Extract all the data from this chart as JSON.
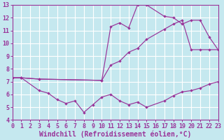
{
  "background_color": "#c5e8ef",
  "grid_color": "#ffffff",
  "line_color": "#993399",
  "xlabel": "Windchill (Refroidissement éolien,°C)",
  "xlabel_fontsize": 7,
  "xlim": [
    0,
    23
  ],
  "ylim": [
    4,
    13
  ],
  "xticks": [
    0,
    1,
    2,
    3,
    4,
    5,
    6,
    7,
    8,
    9,
    10,
    11,
    12,
    13,
    14,
    15,
    16,
    17,
    18,
    19,
    20,
    21,
    22,
    23
  ],
  "yticks": [
    4,
    5,
    6,
    7,
    8,
    9,
    10,
    11,
    12,
    13
  ],
  "tick_fontsize": 6,
  "line1_x": [
    0,
    1,
    3,
    10,
    11,
    12,
    13,
    14,
    15,
    17,
    18,
    19,
    20,
    21,
    22,
    23
  ],
  "line1_y": [
    7.3,
    7.3,
    7.2,
    7.1,
    11.3,
    11.6,
    11.2,
    13.0,
    13.0,
    12.1,
    12.0,
    11.5,
    11.8,
    11.8,
    10.5,
    9.5
  ],
  "line2_x": [
    0,
    1,
    3,
    10,
    11,
    12,
    13,
    14,
    15,
    17,
    18,
    19,
    20,
    21,
    22,
    23
  ],
  "line2_y": [
    7.3,
    7.3,
    7.2,
    7.1,
    8.3,
    8.6,
    9.3,
    9.6,
    10.3,
    11.1,
    11.5,
    11.8,
    9.5,
    9.5,
    9.5,
    9.5
  ],
  "line3_x": [
    0,
    1,
    3,
    4,
    5,
    6,
    7,
    8,
    9,
    10,
    11,
    12,
    13,
    14,
    15,
    17,
    18,
    19,
    20,
    21,
    22,
    23
  ],
  "line3_y": [
    7.3,
    7.3,
    6.3,
    6.1,
    5.6,
    5.3,
    5.5,
    4.6,
    5.2,
    5.8,
    6.0,
    5.5,
    5.2,
    5.4,
    5.0,
    5.5,
    5.9,
    6.2,
    6.3,
    6.5,
    6.8,
    7.0
  ]
}
